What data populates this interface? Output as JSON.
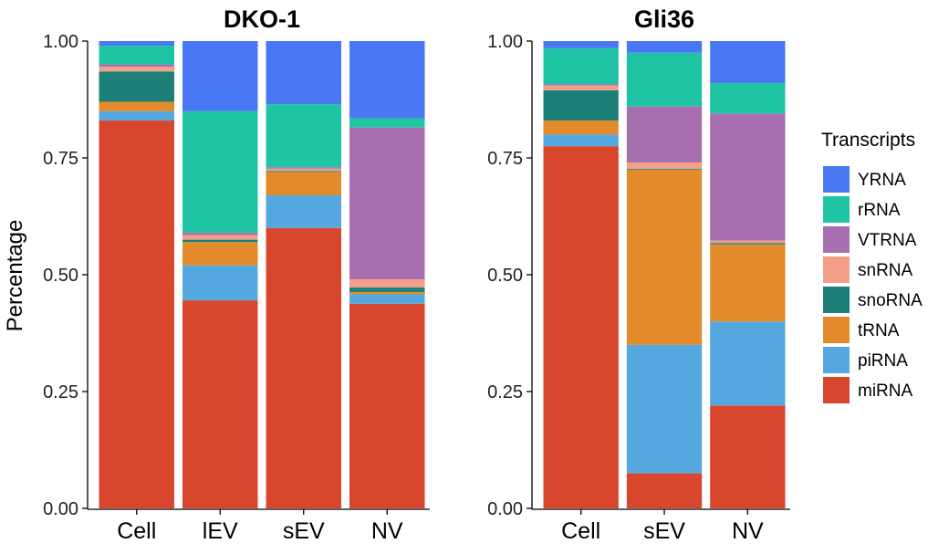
{
  "ylabel": "Percentage",
  "legend": {
    "title": "Transcripts",
    "items": [
      {
        "label": "YRNA",
        "color": "#4a78f5"
      },
      {
        "label": "rRNA",
        "color": "#1fc4a4"
      },
      {
        "label": "VTRNA",
        "color": "#a86fb0"
      },
      {
        "label": "snRNA",
        "color": "#f4a088"
      },
      {
        "label": "snoRNA",
        "color": "#1c8078"
      },
      {
        "label": "tRNA",
        "color": "#e28a2c"
      },
      {
        "label": "piRNA",
        "color": "#55a8df"
      },
      {
        "label": "miRNA",
        "color": "#d8472d"
      }
    ]
  },
  "chart_data": [
    {
      "type": "bar",
      "stacked": true,
      "title": "DKO-1",
      "ylabel": "Percentage",
      "ylim": [
        0,
        1
      ],
      "yticks": [
        "0.00",
        "0.25",
        "0.50",
        "0.75",
        "1.00"
      ],
      "categories": [
        "Cell",
        "lEV",
        "sEV",
        "NV"
      ],
      "series": [
        {
          "name": "miRNA",
          "color": "#d8472d",
          "values": [
            0.83,
            0.445,
            0.6,
            0.438
          ]
        },
        {
          "name": "piRNA",
          "color": "#55a8df",
          "values": [
            0.02,
            0.075,
            0.07,
            0.02
          ]
        },
        {
          "name": "tRNA",
          "color": "#e28a2c",
          "values": [
            0.02,
            0.05,
            0.05,
            0.005
          ]
        },
        {
          "name": "snoRNA",
          "color": "#1c8078",
          "values": [
            0.065,
            0.005,
            0.002,
            0.01
          ]
        },
        {
          "name": "snRNA",
          "color": "#f4a088",
          "values": [
            0.01,
            0.01,
            0.005,
            0.017
          ]
        },
        {
          "name": "VTRNA",
          "color": "#a86fb0",
          "values": [
            0.005,
            0.005,
            0.003,
            0.325
          ]
        },
        {
          "name": "rRNA",
          "color": "#1fc4a4",
          "values": [
            0.04,
            0.26,
            0.135,
            0.02
          ]
        },
        {
          "name": "YRNA",
          "color": "#4a78f5",
          "values": [
            0.01,
            0.15,
            0.135,
            0.165
          ]
        }
      ]
    },
    {
      "type": "bar",
      "stacked": true,
      "title": "Gli36",
      "ylabel": "",
      "ylim": [
        0,
        1
      ],
      "yticks": [
        "0.00",
        "0.25",
        "0.50",
        "0.75",
        "1.00"
      ],
      "categories": [
        "Cell",
        "sEV",
        "NV"
      ],
      "series": [
        {
          "name": "miRNA",
          "color": "#d8472d",
          "values": [
            0.775,
            0.075,
            0.22
          ]
        },
        {
          "name": "piRNA",
          "color": "#55a8df",
          "values": [
            0.025,
            0.275,
            0.18
          ]
        },
        {
          "name": "tRNA",
          "color": "#e28a2c",
          "values": [
            0.03,
            0.375,
            0.165
          ]
        },
        {
          "name": "snoRNA",
          "color": "#1c8078",
          "values": [
            0.065,
            0.002,
            0.003
          ]
        },
        {
          "name": "snRNA",
          "color": "#f4a088",
          "values": [
            0.01,
            0.013,
            0.005
          ]
        },
        {
          "name": "VTRNA",
          "color": "#a86fb0",
          "values": [
            0.003,
            0.12,
            0.272
          ]
        },
        {
          "name": "rRNA",
          "color": "#1fc4a4",
          "values": [
            0.077,
            0.115,
            0.065
          ]
        },
        {
          "name": "YRNA",
          "color": "#4a78f5",
          "values": [
            0.015,
            0.025,
            0.09
          ]
        }
      ]
    }
  ]
}
